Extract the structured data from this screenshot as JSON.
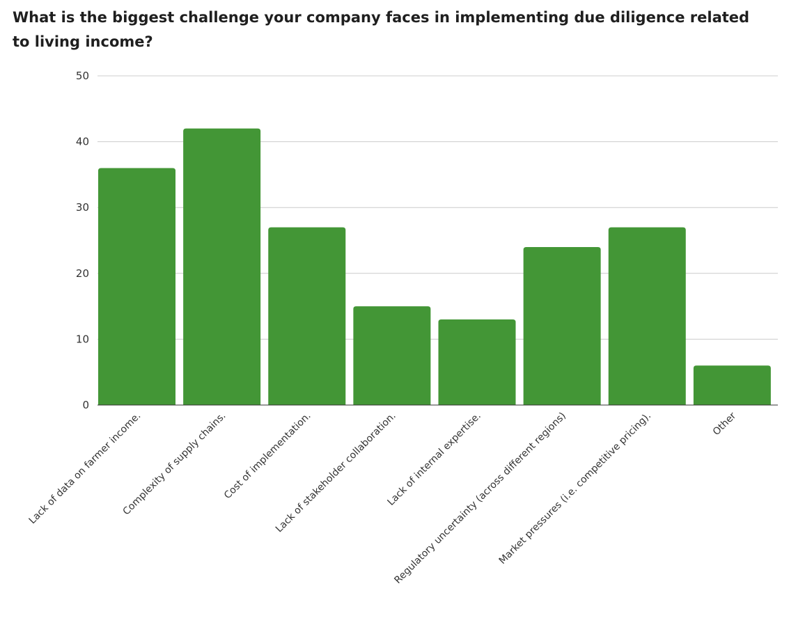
{
  "chart_data": {
    "type": "bar",
    "title": "What is the biggest challenge your company faces in implementing due diligence related to living income?",
    "categories": [
      "Lack of data on farmer income.",
      "Complexity of supply chains.",
      "Cost of implementation.",
      "Lack of stakeholder collaboration.",
      "Lack of internal expertise.",
      "Regulatory uncertainty (across different regions)",
      "Market pressures (i.e. competitive pricing).",
      "Other"
    ],
    "values": [
      36,
      42,
      27,
      15,
      13,
      24,
      27,
      6
    ],
    "ylim": [
      0,
      50
    ],
    "yticks": [
      0,
      10,
      20,
      30,
      40,
      50
    ],
    "xlabel": "",
    "ylabel": "",
    "grid": true,
    "legend": "none",
    "bar_color": "#439636",
    "grid_color": "#cccccc"
  }
}
